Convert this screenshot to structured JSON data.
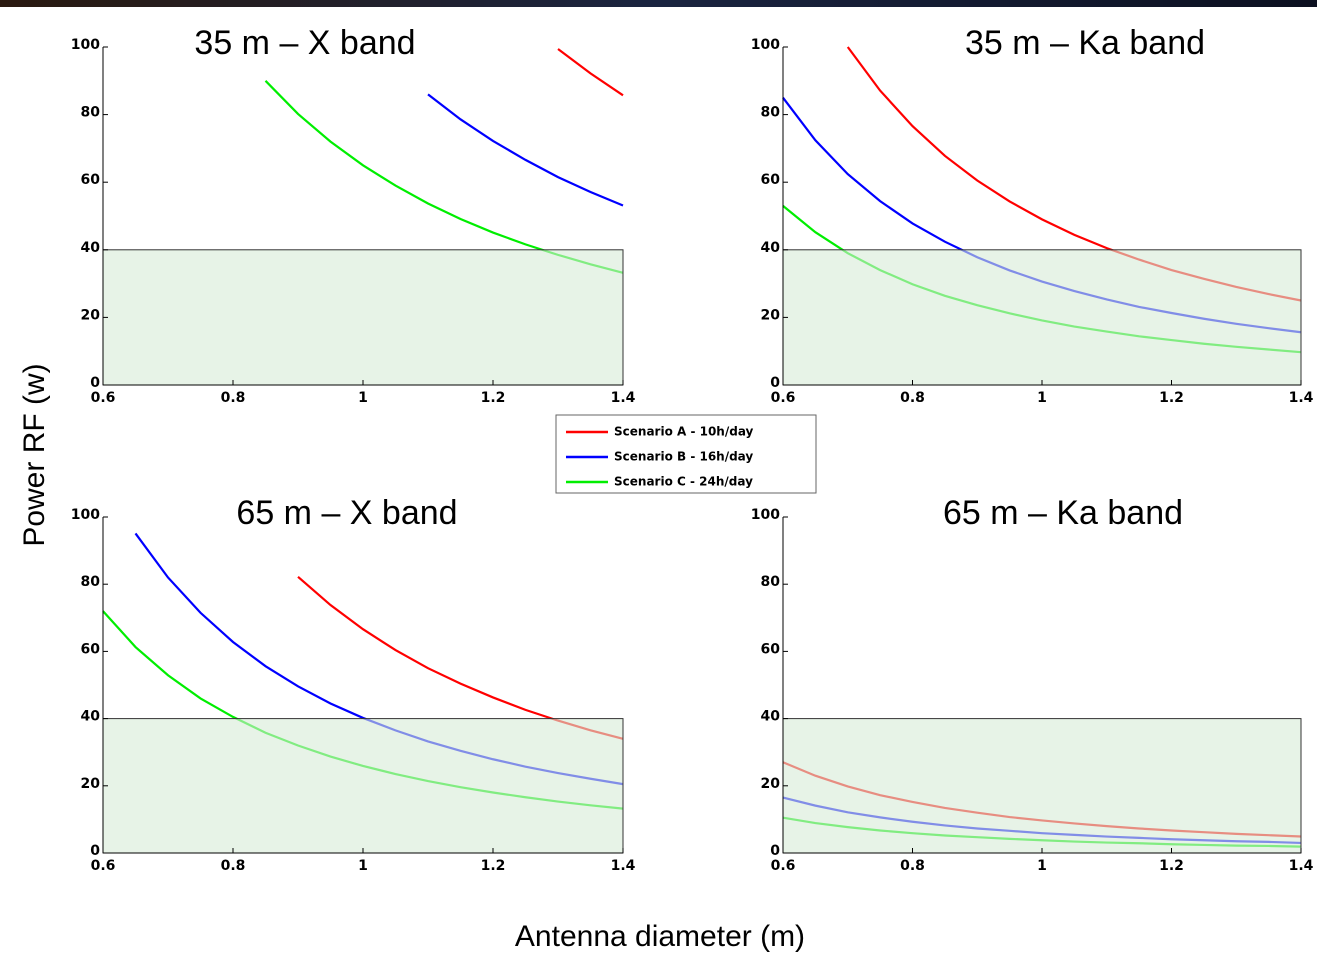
{
  "xlabel": "Antenna diameter (m)",
  "ylabel": "Power RF (w)",
  "legend": [
    {
      "name": "Scenario A - 10h/day",
      "color": "#ff0000"
    },
    {
      "name": "Scenario B - 16h/day",
      "color": "#0000ff"
    },
    {
      "name": "Scenario C - 24h/day",
      "color": "#00ee00"
    }
  ],
  "chart_data": [
    {
      "type": "line",
      "title": "35 m – X band",
      "threshold": 40,
      "x": [
        0.6,
        0.65,
        0.7,
        0.75,
        0.8,
        0.85,
        0.9,
        0.95,
        1,
        1.05,
        1.1,
        1.15,
        1.2,
        1.25,
        1.3,
        1.35,
        1.4
      ],
      "series": [
        {
          "color": "#ff0000",
          "values": [
            null,
            null,
            null,
            null,
            null,
            null,
            null,
            null,
            null,
            null,
            null,
            null,
            null,
            null,
            99.4,
            92.2,
            85.7
          ]
        },
        {
          "color": "#0000ff",
          "values": [
            null,
            null,
            null,
            null,
            null,
            null,
            null,
            null,
            null,
            null,
            86.0,
            78.6,
            72.2,
            66.6,
            61.5,
            57.1,
            53.1
          ]
        },
        {
          "color": "#00ee00",
          "values": [
            null,
            null,
            null,
            null,
            null,
            90.0,
            80.2,
            72.0,
            65,
            59.0,
            53.7,
            49.1,
            45.1,
            41.6,
            38.5,
            35.7,
            33.2
          ]
        }
      ],
      "xlim": [
        0.6,
        1.4
      ],
      "ylim": [
        0,
        100
      ],
      "xticks": [
        0.6,
        0.8,
        1,
        1.2,
        1.4
      ],
      "yticks": [
        0,
        20,
        40,
        60,
        80,
        100
      ]
    },
    {
      "type": "line",
      "title": "35 m – Ka band",
      "threshold": 40,
      "x": [
        0.6,
        0.65,
        0.7,
        0.75,
        0.8,
        0.85,
        0.9,
        0.95,
        1,
        1.05,
        1.1,
        1.15,
        1.2,
        1.25,
        1.3,
        1.35,
        1.4
      ],
      "series": [
        {
          "color": "#ff0000",
          "values": [
            null,
            null,
            100,
            87.1,
            76.6,
            67.8,
            60.5,
            54.3,
            49,
            44.4,
            40.5,
            37.1,
            34.0,
            31.4,
            29.0,
            26.9,
            25.0
          ]
        },
        {
          "color": "#0000ff",
          "values": [
            85.0,
            72.4,
            62.4,
            54.4,
            47.8,
            42.4,
            37.8,
            33.9,
            30.6,
            27.8,
            25.3,
            23.1,
            21.3,
            19.6,
            18.1,
            16.8,
            15.6
          ]
        },
        {
          "color": "#00ee00",
          "values": [
            53.0,
            45.2,
            39.0,
            34.0,
            29.8,
            26.4,
            23.6,
            21.2,
            19.1,
            17.3,
            15.8,
            14.4,
            13.3,
            12.2,
            11.3,
            10.5,
            9.7
          ]
        }
      ],
      "xlim": [
        0.6,
        1.4
      ],
      "ylim": [
        0,
        100
      ],
      "xticks": [
        0.6,
        0.8,
        1,
        1.2,
        1.4
      ],
      "yticks": [
        0,
        20,
        40,
        60,
        80,
        100
      ]
    },
    {
      "type": "line",
      "title": "65 m – X band",
      "threshold": 40,
      "x": [
        0.6,
        0.65,
        0.7,
        0.75,
        0.8,
        0.85,
        0.9,
        0.95,
        1,
        1.05,
        1.1,
        1.15,
        1.2,
        1.25,
        1.3,
        1.35,
        1.4
      ],
      "series": [
        {
          "color": "#ff0000",
          "values": [
            null,
            null,
            null,
            null,
            null,
            null,
            82.2,
            73.8,
            66.6,
            60.4,
            55.0,
            50.4,
            46.3,
            42.6,
            39.4,
            36.5,
            34.0
          ]
        },
        {
          "color": "#0000ff",
          "values": [
            null,
            95.1,
            82.0,
            71.5,
            62.8,
            55.6,
            49.6,
            44.5,
            40.2,
            36.5,
            33.2,
            30.4,
            27.9,
            25.7,
            23.8,
            22.1,
            20.5
          ]
        },
        {
          "color": "#00ee00",
          "values": [
            72.0,
            61.3,
            52.9,
            46.0,
            40.5,
            35.8,
            32.0,
            28.7,
            25.9,
            23.5,
            21.4,
            19.6,
            18.0,
            16.6,
            15.3,
            14.2,
            13.2
          ]
        }
      ],
      "xlim": [
        0.6,
        1.4
      ],
      "ylim": [
        0,
        100
      ],
      "xticks": [
        0.6,
        0.8,
        1,
        1.2,
        1.4
      ],
      "yticks": [
        0,
        20,
        40,
        60,
        80,
        100
      ]
    },
    {
      "type": "line",
      "title": "65 m – Ka band",
      "threshold": 40,
      "x": [
        0.6,
        0.65,
        0.7,
        0.75,
        0.8,
        0.85,
        0.9,
        0.95,
        1,
        1.05,
        1.1,
        1.15,
        1.2,
        1.25,
        1.3,
        1.35,
        1.4
      ],
      "series": [
        {
          "color": "#ff0000",
          "values": [
            27.0,
            23.0,
            19.8,
            17.2,
            15.2,
            13.4,
            12.0,
            10.7,
            9.7,
            8.8,
            8.0,
            7.3,
            6.7,
            6.2,
            5.7,
            5.3,
            4.9
          ]
        },
        {
          "color": "#0000ff",
          "values": [
            16.5,
            14.1,
            12.1,
            10.6,
            9.3,
            8.2,
            7.3,
            6.6,
            5.9,
            5.4,
            4.9,
            4.5,
            4.1,
            3.8,
            3.5,
            3.3,
            3.0
          ]
        },
        {
          "color": "#00ee00",
          "values": [
            10.5,
            8.9,
            7.7,
            6.7,
            5.9,
            5.2,
            4.7,
            4.2,
            3.8,
            3.4,
            3.1,
            2.9,
            2.6,
            2.4,
            2.2,
            2.1,
            1.9
          ]
        }
      ],
      "xlim": [
        0.6,
        1.4
      ],
      "ylim": [
        0,
        100
      ],
      "xticks": [
        0.6,
        0.8,
        1,
        1.2,
        1.4
      ],
      "yticks": [
        0,
        20,
        40,
        60,
        80,
        100
      ]
    }
  ]
}
